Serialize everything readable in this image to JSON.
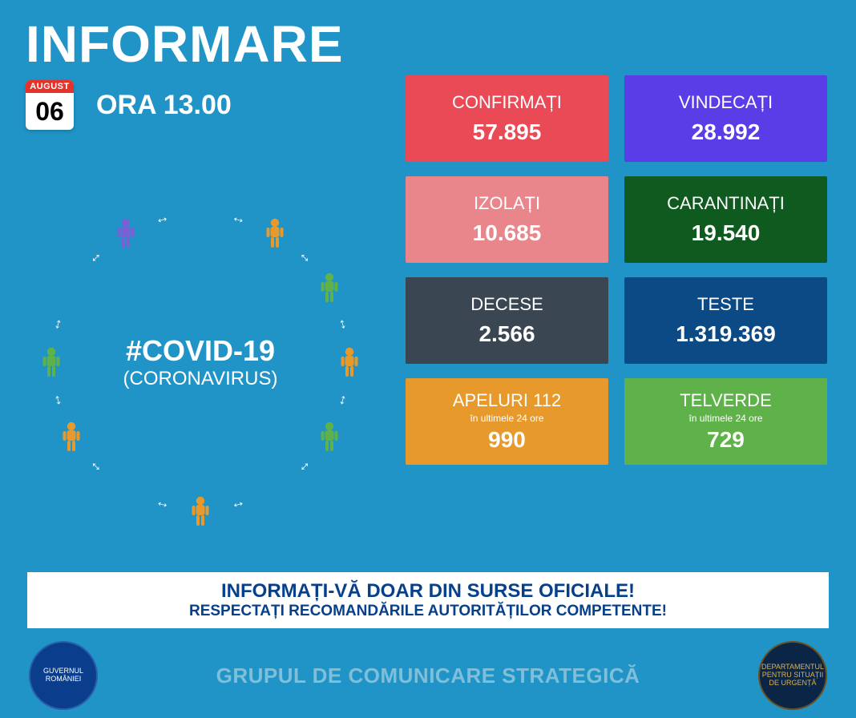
{
  "title": "INFORMARE",
  "date": {
    "month": "AUGUST",
    "day": "06"
  },
  "time_label": "ORA 13.00",
  "circle": {
    "hashtag": "#COVID-19",
    "subtitle": "(CORONAVIRUS)",
    "radius": 186,
    "person_count": 12,
    "person_colors": [
      "#2094c7",
      "#e79a2b",
      "#5fb249",
      "#e79a2b",
      "#5fb249",
      "#2094c7",
      "#e79a2b",
      "#2094c7",
      "#e79a2b",
      "#5fb249",
      "#2094c7",
      "#7a5fd6"
    ]
  },
  "cards": [
    {
      "label": "CONFIRMAȚI",
      "value": "57.895",
      "bg": "#e94a55"
    },
    {
      "label": "VINDECAȚI",
      "value": "28.992",
      "bg": "#5a3de6"
    },
    {
      "label": "IZOLAȚI",
      "value": "10.685",
      "bg": "#e8868c"
    },
    {
      "label": "CARANTINAȚI",
      "value": "19.540",
      "bg": "#0f5a1f"
    },
    {
      "label": "DECESE",
      "value": "2.566",
      "bg": "#3a4652"
    },
    {
      "label": "TESTE",
      "value": "1.319.369",
      "bg": "#0b4a85"
    },
    {
      "label": "APELURI 112",
      "sub": "în ultimele 24 ore",
      "value": "990",
      "bg": "#e79a2b"
    },
    {
      "label": "TELVERDE",
      "sub": "în ultimele 24 ore",
      "value": "729",
      "bg": "#5fb249"
    }
  ],
  "banner": {
    "line1": "INFORMAȚI-VĂ DOAR DIN SURSE OFICIALE!",
    "line2": "RESPECTAȚI RECOMANDĂRILE AUTORITĂȚILOR COMPETENTE!",
    "text_color": "#063f8a",
    "bg": "#ffffff"
  },
  "footer": {
    "text": "GRUPUL DE COMUNICARE STRATEGICĂ",
    "emblem_left_label": "GUVERNUL ROMÂNIEI",
    "emblem_right_label": "DEPARTAMENTUL PENTRU SITUAȚII DE URGENȚĂ"
  },
  "colors": {
    "background": "#2094c7",
    "footer_text": "#7fbfd9"
  }
}
